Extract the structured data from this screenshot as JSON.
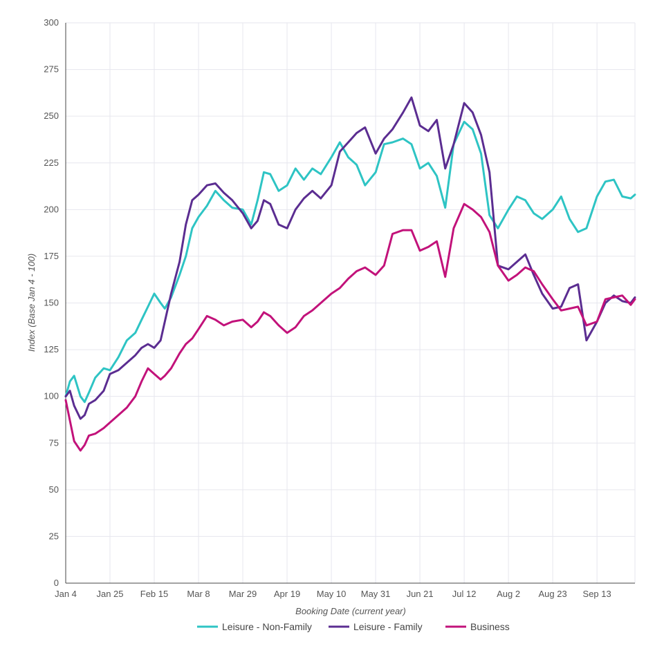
{
  "chart_data": {
    "type": "line",
    "xlabel": "Booking Date (current year)",
    "ylabel": "Index (Base Jan 4 - 100)",
    "ylim": [
      0,
      300
    ],
    "yticks": [
      0,
      25,
      50,
      75,
      100,
      125,
      150,
      175,
      200,
      225,
      250,
      275,
      300
    ],
    "x_start": "Jan 4",
    "x_end": "Oct 1",
    "x_ticks": [
      "Jan 4",
      "Jan 25",
      "Feb 15",
      "Mar 8",
      "Mar 29",
      "Apr 19",
      "May 10",
      "May 31",
      "Jun 21",
      "Jul 12",
      "Aug 2",
      "Aug 23",
      "Sep 13"
    ],
    "grid": true,
    "legend_position": "bottom",
    "series": [
      {
        "name": "Leisure - Non-Family",
        "color": "#2ec4c4",
        "x": [
          "Jan 4",
          "Jan 6",
          "Jan 8",
          "Jan 11",
          "Jan 13",
          "Jan 15",
          "Jan 18",
          "Jan 22",
          "Jan 25",
          "Jan 29",
          "Feb 2",
          "Feb 6",
          "Feb 9",
          "Feb 12",
          "Feb 15",
          "Feb 18",
          "Feb 20",
          "Feb 23",
          "Feb 27",
          "Mar 2",
          "Mar 5",
          "Mar 8",
          "Mar 12",
          "Mar 16",
          "Mar 20",
          "Mar 24",
          "Mar 29",
          "Apr 2",
          "Apr 5",
          "Apr 8",
          "Apr 11",
          "Apr 15",
          "Apr 19",
          "Apr 23",
          "Apr 27",
          "May 1",
          "May 5",
          "May 10",
          "May 14",
          "May 18",
          "May 22",
          "May 26",
          "May 31",
          "Jun 4",
          "Jun 8",
          "Jun 13",
          "Jun 17",
          "Jun 21",
          "Jun 25",
          "Jun 29",
          "Jul 3",
          "Jul 7",
          "Jul 12",
          "Jul 16",
          "Jul 20",
          "Jul 24",
          "Jul 28",
          "Aug 2",
          "Aug 6",
          "Aug 10",
          "Aug 14",
          "Aug 18",
          "Aug 23",
          "Aug 27",
          "Aug 31",
          "Sep 4",
          "Sep 8",
          "Sep 13",
          "Sep 17",
          "Sep 21",
          "Sep 25",
          "Sep 29",
          "Oct 1"
        ],
        "values": [
          100,
          108,
          111,
          100,
          97,
          102,
          110,
          115,
          114,
          121,
          130,
          134,
          141,
          148,
          155,
          150,
          147,
          153,
          165,
          175,
          190,
          196,
          202,
          210,
          205,
          201,
          200,
          192,
          205,
          220,
          219,
          210,
          213,
          222,
          216,
          222,
          219,
          228,
          236,
          228,
          224,
          213,
          220,
          235,
          236,
          238,
          235,
          222,
          225,
          218,
          201,
          235,
          247,
          243,
          230,
          197,
          190,
          200,
          207,
          205,
          198,
          195,
          200,
          207,
          195,
          188,
          190,
          207,
          215,
          216,
          207,
          206,
          208
        ]
      },
      {
        "name": "Leisure - Family",
        "color": "#5b2d91",
        "x": [
          "Jan 4",
          "Jan 6",
          "Jan 8",
          "Jan 11",
          "Jan 13",
          "Jan 15",
          "Jan 18",
          "Jan 22",
          "Jan 25",
          "Jan 29",
          "Feb 2",
          "Feb 6",
          "Feb 9",
          "Feb 12",
          "Feb 15",
          "Feb 18",
          "Feb 20",
          "Feb 23",
          "Feb 27",
          "Mar 2",
          "Mar 5",
          "Mar 8",
          "Mar 12",
          "Mar 16",
          "Mar 20",
          "Mar 24",
          "Mar 29",
          "Apr 2",
          "Apr 5",
          "Apr 8",
          "Apr 11",
          "Apr 15",
          "Apr 19",
          "Apr 23",
          "Apr 27",
          "May 1",
          "May 5",
          "May 10",
          "May 14",
          "May 18",
          "May 22",
          "May 26",
          "May 31",
          "Jun 4",
          "Jun 8",
          "Jun 13",
          "Jun 17",
          "Jun 21",
          "Jun 25",
          "Jun 29",
          "Jul 3",
          "Jul 7",
          "Jul 12",
          "Jul 16",
          "Jul 20",
          "Jul 24",
          "Jul 28",
          "Aug 2",
          "Aug 6",
          "Aug 10",
          "Aug 14",
          "Aug 18",
          "Aug 23",
          "Aug 27",
          "Aug 31",
          "Sep 4",
          "Sep 8",
          "Sep 13",
          "Sep 17",
          "Sep 21",
          "Sep 25",
          "Sep 29",
          "Oct 1"
        ],
        "values": [
          100,
          103,
          95,
          88,
          90,
          96,
          98,
          103,
          112,
          114,
          118,
          122,
          126,
          128,
          126,
          130,
          140,
          155,
          172,
          192,
          205,
          208,
          213,
          214,
          209,
          205,
          198,
          190,
          194,
          205,
          203,
          192,
          190,
          200,
          206,
          210,
          206,
          213,
          231,
          236,
          241,
          244,
          230,
          238,
          243,
          252,
          260,
          245,
          242,
          248,
          222,
          235,
          257,
          252,
          240,
          220,
          170,
          168,
          172,
          176,
          165,
          155,
          147,
          148,
          158,
          160,
          130,
          140,
          150,
          154,
          151,
          150,
          153
        ]
      },
      {
        "name": "Business",
        "color": "#c2127a",
        "x": [
          "Jan 4",
          "Jan 6",
          "Jan 8",
          "Jan 11",
          "Jan 13",
          "Jan 15",
          "Jan 18",
          "Jan 22",
          "Jan 25",
          "Jan 29",
          "Feb 2",
          "Feb 6",
          "Feb 9",
          "Feb 12",
          "Feb 15",
          "Feb 18",
          "Feb 20",
          "Feb 23",
          "Feb 27",
          "Mar 2",
          "Mar 5",
          "Mar 8",
          "Mar 12",
          "Mar 16",
          "Mar 20",
          "Mar 24",
          "Mar 29",
          "Apr 2",
          "Apr 5",
          "Apr 8",
          "Apr 11",
          "Apr 15",
          "Apr 19",
          "Apr 23",
          "Apr 27",
          "May 1",
          "May 5",
          "May 10",
          "May 14",
          "May 18",
          "May 22",
          "May 26",
          "May 31",
          "Jun 4",
          "Jun 8",
          "Jun 13",
          "Jun 17",
          "Jun 21",
          "Jun 25",
          "Jun 29",
          "Jul 3",
          "Jul 7",
          "Jul 12",
          "Jul 16",
          "Jul 20",
          "Jul 24",
          "Jul 28",
          "Aug 2",
          "Aug 6",
          "Aug 10",
          "Aug 14",
          "Aug 18",
          "Aug 23",
          "Aug 27",
          "Aug 31",
          "Sep 4",
          "Sep 8",
          "Sep 13",
          "Sep 17",
          "Sep 21",
          "Sep 25",
          "Sep 29",
          "Oct 1"
        ],
        "values": [
          98,
          87,
          76,
          71,
          74,
          79,
          80,
          83,
          86,
          90,
          94,
          100,
          108,
          115,
          112,
          109,
          111,
          115,
          123,
          128,
          131,
          136,
          143,
          141,
          138,
          140,
          141,
          137,
          140,
          145,
          143,
          138,
          134,
          137,
          143,
          146,
          150,
          155,
          158,
          163,
          167,
          169,
          165,
          170,
          187,
          189,
          189,
          178,
          180,
          183,
          164,
          190,
          203,
          200,
          196,
          188,
          170,
          162,
          165,
          169,
          167,
          160,
          152,
          146,
          147,
          148,
          138,
          140,
          152,
          153,
          154,
          149,
          152
        ]
      }
    ]
  }
}
